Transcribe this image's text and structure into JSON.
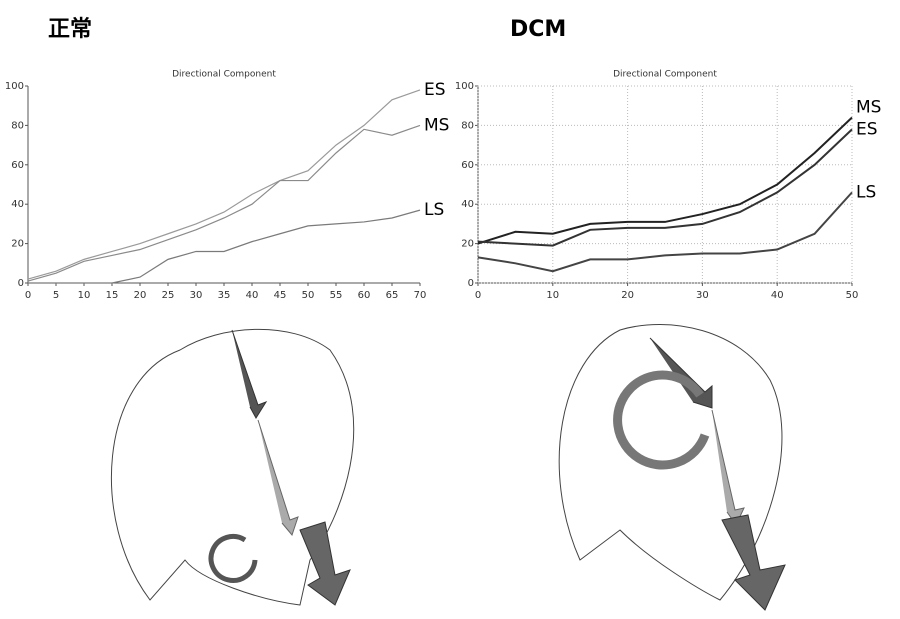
{
  "chart_data": [
    {
      "type": "line",
      "panel_label": "正常",
      "title": "Directional Component",
      "x": [
        0,
        5,
        10,
        15,
        20,
        25,
        30,
        35,
        40,
        45,
        50,
        55,
        60,
        65,
        70
      ],
      "series": [
        {
          "name": "ES",
          "color": "#9a9a9a",
          "values": [
            2,
            6,
            12,
            16,
            20,
            25,
            30,
            36,
            45,
            52,
            57,
            70,
            80,
            93,
            98
          ]
        },
        {
          "name": "MS",
          "color": "#8a8a8a",
          "values": [
            1,
            5,
            11,
            14,
            17,
            22,
            27,
            33,
            40,
            52,
            52,
            66,
            78,
            75,
            80
          ]
        },
        {
          "name": "LS",
          "color": "#7a7a7a",
          "values": [
            0,
            0,
            0,
            0,
            3,
            12,
            16,
            16,
            21,
            25,
            29,
            30,
            31,
            33,
            37
          ]
        }
      ],
      "xlim": [
        0,
        70
      ],
      "xticks": [
        0,
        5,
        10,
        15,
        20,
        25,
        30,
        35,
        40,
        45,
        50,
        55,
        60,
        65,
        70
      ],
      "ylim": [
        0,
        100
      ],
      "yticks": [
        0,
        20,
        40,
        60,
        80,
        100
      ],
      "grid": false
    },
    {
      "type": "line",
      "panel_label": "DCM",
      "title": "Directional Component",
      "x": [
        0,
        5,
        10,
        15,
        20,
        25,
        30,
        35,
        40,
        45,
        50
      ],
      "series": [
        {
          "name": "MS",
          "color": "#222222",
          "values": [
            20,
            26,
            25,
            30,
            31,
            31,
            35,
            40,
            50,
            66,
            84
          ]
        },
        {
          "name": "ES",
          "color": "#333333",
          "values": [
            21,
            20,
            19,
            27,
            28,
            28,
            30,
            36,
            46,
            60,
            78
          ]
        },
        {
          "name": "LS",
          "color": "#444444",
          "values": [
            13,
            10,
            6,
            12,
            12,
            14,
            15,
            15,
            17,
            25,
            46
          ]
        }
      ],
      "xlim": [
        0,
        50
      ],
      "xticks": [
        0,
        10,
        20,
        30,
        40,
        50
      ],
      "ylim": [
        0,
        100
      ],
      "yticks": [
        0,
        20,
        40,
        60,
        80,
        100
      ],
      "grid": true
    }
  ]
}
